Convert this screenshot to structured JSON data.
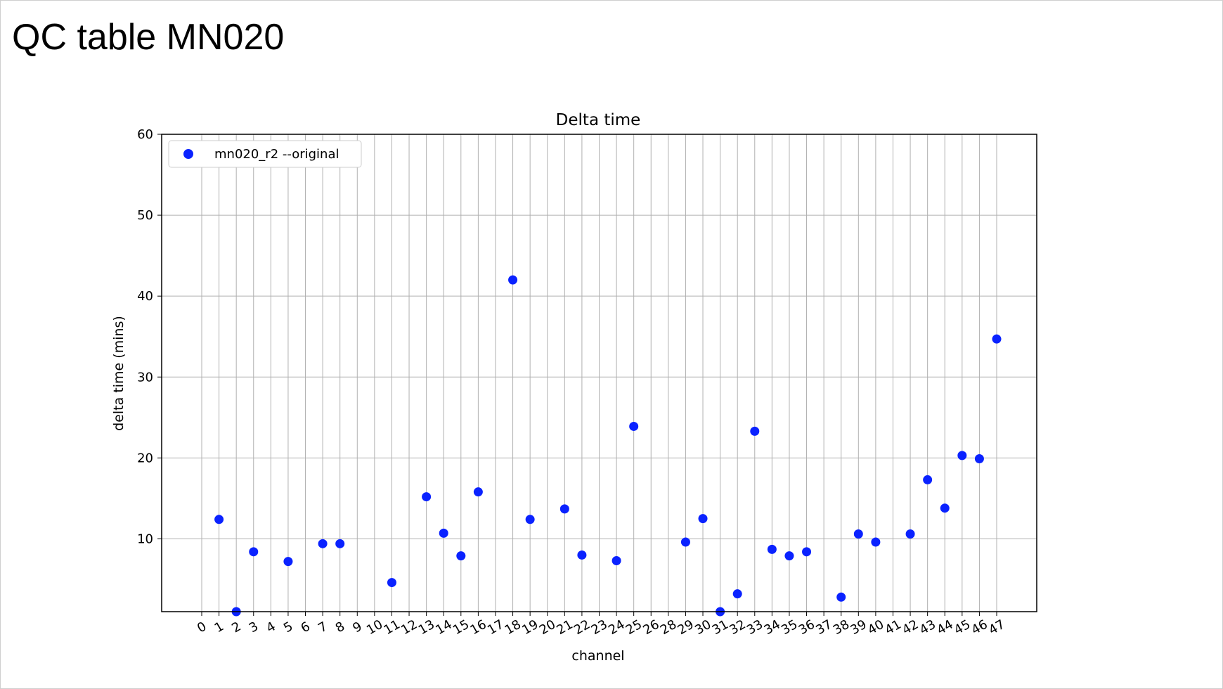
{
  "slide": {
    "title": "QC table MN020"
  },
  "chart_data": {
    "type": "scatter",
    "title": "Delta time",
    "xlabel": "channel",
    "ylabel": "delta time (mins)",
    "x_ticks": [
      0,
      1,
      2,
      3,
      4,
      5,
      6,
      7,
      8,
      9,
      10,
      11,
      12,
      13,
      14,
      15,
      16,
      17,
      18,
      19,
      20,
      21,
      22,
      23,
      24,
      25,
      26,
      28,
      29,
      30,
      31,
      32,
      33,
      34,
      35,
      36,
      37,
      38,
      39,
      40,
      41,
      42,
      43,
      44,
      45,
      46,
      47
    ],
    "ylim": [
      1,
      60
    ],
    "y_ticks": [
      10,
      20,
      30,
      40,
      50,
      60
    ],
    "grid": true,
    "legend_position": "top-left",
    "series": [
      {
        "name": "mn020_r2 --original",
        "color": "#0a22ff",
        "points": [
          {
            "x": "1",
            "y": 12.4
          },
          {
            "x": "2",
            "y": 1.0
          },
          {
            "x": "3",
            "y": 8.4
          },
          {
            "x": "5",
            "y": 7.2
          },
          {
            "x": "7",
            "y": 9.4
          },
          {
            "x": "8",
            "y": 9.4
          },
          {
            "x": "11",
            "y": 4.6
          },
          {
            "x": "13",
            "y": 15.2
          },
          {
            "x": "14",
            "y": 10.7
          },
          {
            "x": "15",
            "y": 7.9
          },
          {
            "x": "16",
            "y": 15.8
          },
          {
            "x": "18",
            "y": 42.0
          },
          {
            "x": "19",
            "y": 12.4
          },
          {
            "x": "21",
            "y": 13.7
          },
          {
            "x": "22",
            "y": 8.0
          },
          {
            "x": "24",
            "y": 7.3
          },
          {
            "x": "25",
            "y": 23.9
          },
          {
            "x": "29",
            "y": 9.6
          },
          {
            "x": "30",
            "y": 12.5
          },
          {
            "x": "31",
            "y": 1.0
          },
          {
            "x": "32",
            "y": 3.2
          },
          {
            "x": "33",
            "y": 23.3
          },
          {
            "x": "34",
            "y": 8.7
          },
          {
            "x": "35",
            "y": 7.9
          },
          {
            "x": "36",
            "y": 8.4
          },
          {
            "x": "38",
            "y": 2.8
          },
          {
            "x": "39",
            "y": 10.6
          },
          {
            "x": "40",
            "y": 9.6
          },
          {
            "x": "42",
            "y": 10.6
          },
          {
            "x": "43",
            "y": 17.3
          },
          {
            "x": "44",
            "y": 13.8
          },
          {
            "x": "45",
            "y": 20.3
          },
          {
            "x": "46",
            "y": 19.9
          },
          {
            "x": "47",
            "y": 34.7
          }
        ]
      }
    ]
  }
}
